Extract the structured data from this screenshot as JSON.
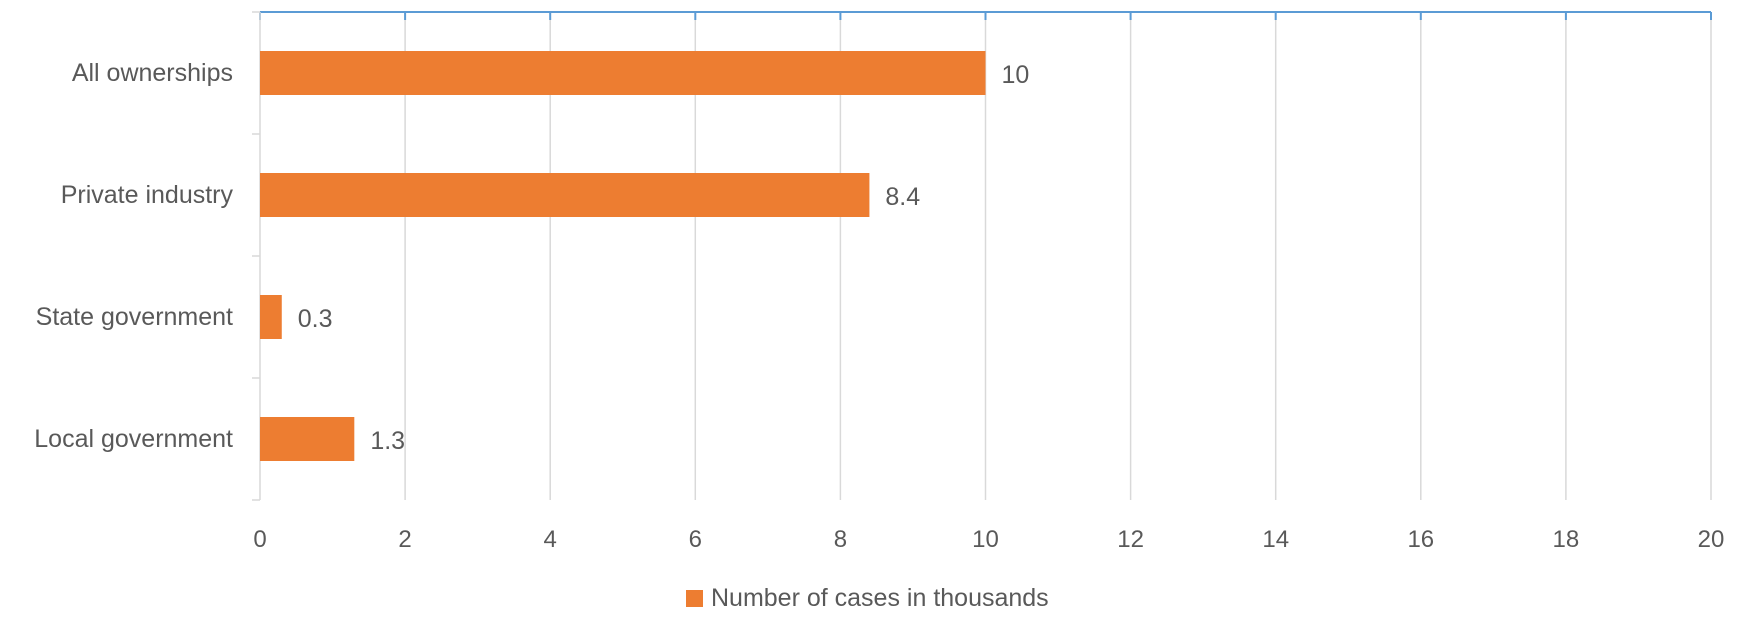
{
  "chart_data": {
    "type": "bar",
    "orientation": "horizontal",
    "categories": [
      "All ownerships",
      "Private industry",
      "State government",
      "Local government"
    ],
    "series": [
      {
        "name": "Number of cases in thousands",
        "values": [
          10,
          8.4,
          0.3,
          1.3
        ],
        "data_labels": [
          "10",
          "8.4",
          "0.3",
          "1.3"
        ],
        "color": "#ED7D31"
      }
    ],
    "xlim": [
      0,
      20
    ],
    "x_ticks": [
      0,
      2,
      4,
      6,
      8,
      10,
      12,
      14,
      16,
      18,
      20
    ],
    "x_tick_labels": [
      "0",
      "2",
      "4",
      "6",
      "8",
      "10",
      "12",
      "14",
      "16",
      "18",
      "20"
    ],
    "title": "",
    "xlabel": "",
    "ylabel": "",
    "grid": "vertical",
    "legend": {
      "position": "bottom",
      "label": "Number of cases in thousands"
    },
    "colors": {
      "bar": "#ED7D31",
      "top_axis": "#5B9BD5",
      "grid": "#D9D9D9",
      "text": "#595959"
    }
  }
}
